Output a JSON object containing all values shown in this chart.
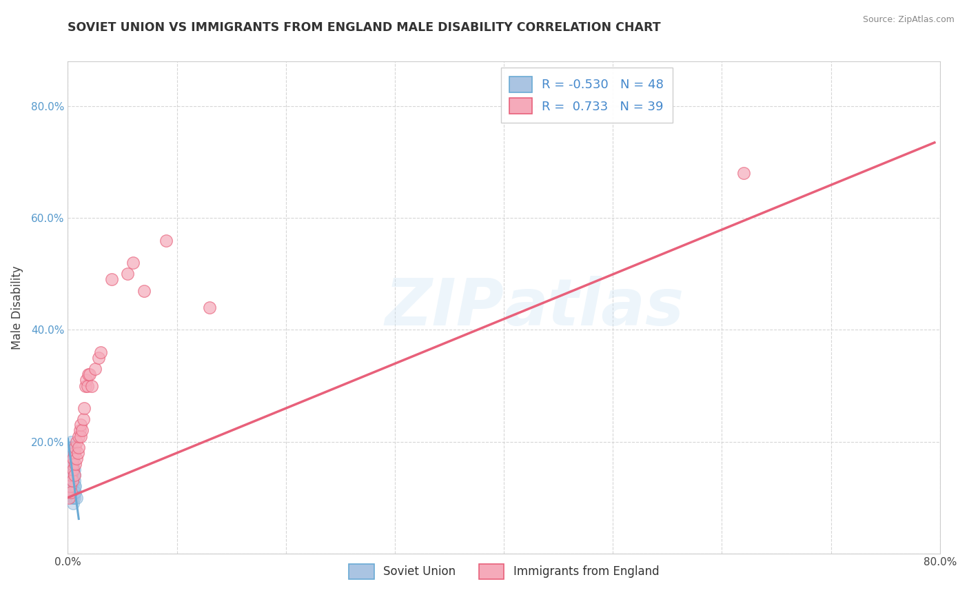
{
  "title": "SOVIET UNION VS IMMIGRANTS FROM ENGLAND MALE DISABILITY CORRELATION CHART",
  "source": "Source: ZipAtlas.com",
  "ylabel": "Male Disability",
  "x_min": 0.0,
  "x_max": 0.8,
  "y_min": 0.0,
  "y_max": 0.88,
  "x_ticks": [
    0.0,
    0.1,
    0.2,
    0.3,
    0.4,
    0.5,
    0.6,
    0.7,
    0.8
  ],
  "x_tick_labels": [
    "0.0%",
    "",
    "",
    "",
    "",
    "",
    "",
    "",
    "80.0%"
  ],
  "y_ticks": [
    0.0,
    0.2,
    0.4,
    0.6,
    0.8
  ],
  "y_tick_labels": [
    "",
    "20.0%",
    "40.0%",
    "60.0%",
    "80.0%"
  ],
  "grid_color": "#cccccc",
  "background_color": "#ffffff",
  "watermark": "ZIPatlas",
  "legend_R1": "-0.530",
  "legend_N1": "48",
  "legend_R2": "0.733",
  "legend_N2": "39",
  "soviet_color": "#aac4e2",
  "england_color": "#f5aaba",
  "soviet_edge_color": "#6aaad4",
  "england_edge_color": "#e8607a",
  "legend_label1": "Soviet Union",
  "legend_label2": "Immigrants from England",
  "soviet_scatter_x": [
    0.001,
    0.001,
    0.001,
    0.001,
    0.002,
    0.002,
    0.002,
    0.002,
    0.002,
    0.002,
    0.002,
    0.003,
    0.003,
    0.003,
    0.003,
    0.003,
    0.003,
    0.003,
    0.003,
    0.003,
    0.003,
    0.004,
    0.004,
    0.004,
    0.004,
    0.004,
    0.004,
    0.004,
    0.004,
    0.004,
    0.004,
    0.005,
    0.005,
    0.005,
    0.005,
    0.005,
    0.005,
    0.005,
    0.005,
    0.006,
    0.006,
    0.006,
    0.006,
    0.006,
    0.006,
    0.007,
    0.007,
    0.008
  ],
  "soviet_scatter_y": [
    0.14,
    0.16,
    0.17,
    0.18,
    0.12,
    0.13,
    0.15,
    0.16,
    0.17,
    0.18,
    0.19,
    0.11,
    0.12,
    0.13,
    0.14,
    0.15,
    0.16,
    0.17,
    0.18,
    0.19,
    0.2,
    0.1,
    0.11,
    0.12,
    0.13,
    0.14,
    0.15,
    0.16,
    0.17,
    0.18,
    0.19,
    0.09,
    0.1,
    0.11,
    0.12,
    0.13,
    0.14,
    0.15,
    0.16,
    0.1,
    0.11,
    0.12,
    0.13,
    0.14,
    0.15,
    0.11,
    0.12,
    0.1
  ],
  "england_scatter_x": [
    0.001,
    0.002,
    0.003,
    0.003,
    0.004,
    0.004,
    0.005,
    0.005,
    0.006,
    0.006,
    0.007,
    0.007,
    0.008,
    0.008,
    0.009,
    0.01,
    0.01,
    0.011,
    0.012,
    0.012,
    0.013,
    0.014,
    0.015,
    0.016,
    0.017,
    0.018,
    0.019,
    0.02,
    0.022,
    0.025,
    0.028,
    0.03,
    0.04,
    0.055,
    0.06,
    0.07,
    0.09,
    0.13,
    0.62
  ],
  "england_scatter_y": [
    0.1,
    0.12,
    0.11,
    0.14,
    0.13,
    0.16,
    0.15,
    0.17,
    0.14,
    0.18,
    0.16,
    0.19,
    0.17,
    0.2,
    0.18,
    0.19,
    0.21,
    0.22,
    0.21,
    0.23,
    0.22,
    0.24,
    0.26,
    0.3,
    0.31,
    0.3,
    0.32,
    0.32,
    0.3,
    0.33,
    0.35,
    0.36,
    0.49,
    0.5,
    0.52,
    0.47,
    0.56,
    0.44,
    0.68
  ],
  "soviet_trendline_x": [
    0.0,
    0.01
  ],
  "soviet_trendline_y": [
    0.205,
    0.062
  ],
  "england_trendline_x": [
    0.0,
    0.795
  ],
  "england_trendline_y": [
    0.1,
    0.735
  ]
}
